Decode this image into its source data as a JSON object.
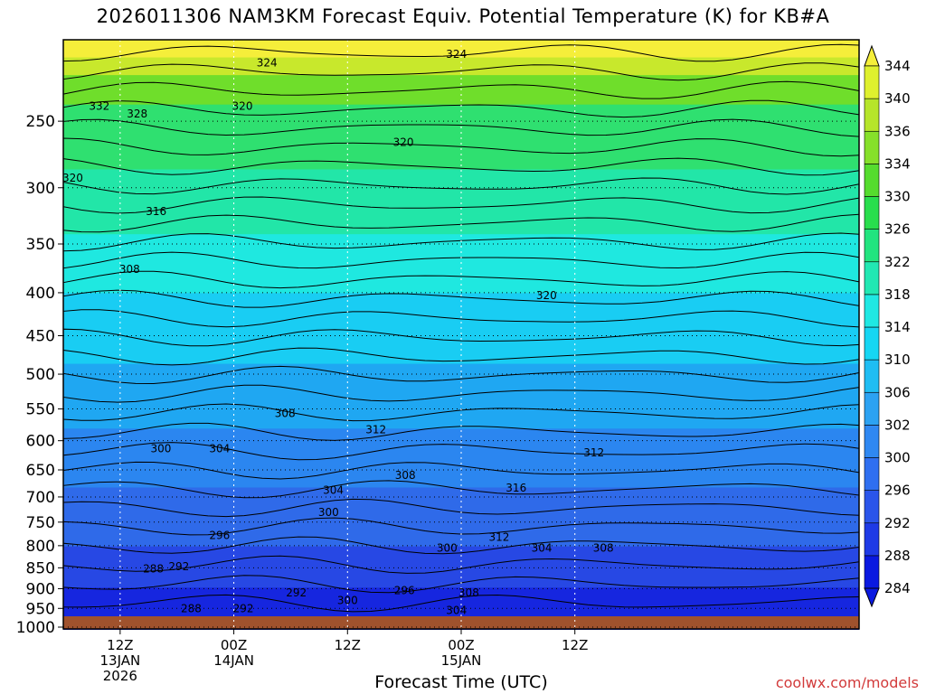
{
  "title": "2026011306 NAM3KM Forecast Equiv. Potential Temperature (K) for KB#A",
  "footer": {
    "credit": "coolwx.com/models"
  },
  "chart_data": {
    "type": "heatmap",
    "title": "2026011306 NAM3KM Forecast Equiv. Potential Temperature (K) for KB#A",
    "xlabel": "Forecast Time (UTC)",
    "ylabel": "",
    "units": "K",
    "y_axis": {
      "scale": "log-pressure",
      "range": [
        1000,
        200
      ],
      "ticks": [
        250,
        300,
        350,
        400,
        450,
        500,
        550,
        600,
        650,
        700,
        750,
        800,
        850,
        900,
        950,
        1000
      ]
    },
    "x_axis": {
      "range_hours": [
        0,
        84
      ],
      "ticks": [
        {
          "hour": 6,
          "lines": [
            "12Z",
            "13JAN",
            "2026"
          ]
        },
        {
          "hour": 18,
          "lines": [
            "00Z",
            "14JAN"
          ]
        },
        {
          "hour": 30,
          "lines": [
            "12Z",
            ""
          ]
        },
        {
          "hour": 42,
          "lines": [
            "00Z",
            "15JAN"
          ]
        },
        {
          "hour": 54,
          "lines": [
            "12Z",
            ""
          ]
        }
      ]
    },
    "grid": true,
    "colorbar": {
      "levels": [
        284,
        288,
        292,
        296,
        300,
        302,
        306,
        310,
        314,
        318,
        322,
        326,
        330,
        334,
        336,
        340,
        344
      ],
      "colors": [
        "#0a19e0",
        "#1e3ae6",
        "#2a55ea",
        "#2f6ff0",
        "#2f88f2",
        "#2ca2f2",
        "#1fbdf3",
        "#16d6f3",
        "#1fe8e3",
        "#21e8b3",
        "#22e47f",
        "#28de4d",
        "#55dc2e",
        "#86e02a",
        "#b6e52a",
        "#dff02e",
        "#f5ee3a"
      ],
      "position": "right"
    },
    "contour_labels": [
      {
        "value": 324,
        "x_hour": 21.5,
        "p": 213
      },
      {
        "value": 324,
        "x_hour": 41.5,
        "p": 208
      },
      {
        "value": 332,
        "x_hour": 3.8,
        "p": 240
      },
      {
        "value": 328,
        "x_hour": 7.8,
        "p": 245
      },
      {
        "value": 320,
        "x_hour": 18.9,
        "p": 240
      },
      {
        "value": 320,
        "x_hour": 35.9,
        "p": 265
      },
      {
        "value": 320,
        "x_hour": 1.0,
        "p": 292
      },
      {
        "value": 316,
        "x_hour": 9.8,
        "p": 320
      },
      {
        "value": 308,
        "x_hour": 7.0,
        "p": 375
      },
      {
        "value": 320,
        "x_hour": 51.0,
        "p": 403
      },
      {
        "value": 308,
        "x_hour": 23.4,
        "p": 557
      },
      {
        "value": 312,
        "x_hour": 33.0,
        "p": 582
      },
      {
        "value": 300,
        "x_hour": 10.3,
        "p": 613
      },
      {
        "value": 304,
        "x_hour": 16.5,
        "p": 613
      },
      {
        "value": 312,
        "x_hour": 56.0,
        "p": 620
      },
      {
        "value": 308,
        "x_hour": 36.1,
        "p": 660
      },
      {
        "value": 316,
        "x_hour": 47.8,
        "p": 683
      },
      {
        "value": 304,
        "x_hour": 28.5,
        "p": 687
      },
      {
        "value": 300,
        "x_hour": 28.0,
        "p": 730
      },
      {
        "value": 296,
        "x_hour": 16.5,
        "p": 778
      },
      {
        "value": 312,
        "x_hour": 46.0,
        "p": 782
      },
      {
        "value": 300,
        "x_hour": 40.5,
        "p": 805
      },
      {
        "value": 304,
        "x_hour": 50.5,
        "p": 805
      },
      {
        "value": 308,
        "x_hour": 57.0,
        "p": 805
      },
      {
        "value": 288,
        "x_hour": 9.5,
        "p": 852
      },
      {
        "value": 292,
        "x_hour": 12.2,
        "p": 847
      },
      {
        "value": 296,
        "x_hour": 36.0,
        "p": 905
      },
      {
        "value": 292,
        "x_hour": 24.6,
        "p": 910
      },
      {
        "value": 300,
        "x_hour": 30.0,
        "p": 930
      },
      {
        "value": 308,
        "x_hour": 42.8,
        "p": 910
      },
      {
        "value": 288,
        "x_hour": 13.5,
        "p": 950
      },
      {
        "value": 292,
        "x_hour": 19.0,
        "p": 950
      },
      {
        "value": 304,
        "x_hour": 41.5,
        "p": 955
      }
    ]
  }
}
